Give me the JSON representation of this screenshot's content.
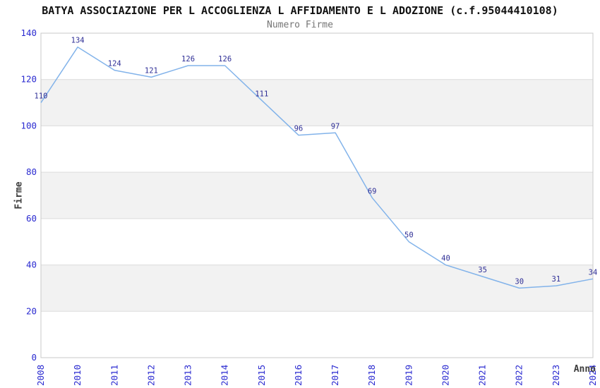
{
  "chart_data": {
    "type": "line",
    "title": "BATYA ASSOCIAZIONE PER L ACCOGLIENZA L AFFIDAMENTO E L ADOZIONE (c.f.95044410108)",
    "subtitle": "Numero Firme",
    "xlabel": "Anno",
    "ylabel": "Firme",
    "categories": [
      "2008",
      "2010",
      "2011",
      "2012",
      "2013",
      "2014",
      "2015",
      "2016",
      "2017",
      "2018",
      "2019",
      "2020",
      "2021",
      "2022",
      "2023",
      "2024"
    ],
    "series": [
      {
        "name": "Numero Firme",
        "values": [
          110,
          134,
          124,
          121,
          126,
          126,
          111,
          96,
          97,
          69,
          50,
          40,
          35,
          30,
          31,
          34
        ]
      }
    ],
    "point_labels": [
      "110",
      "134",
      "124",
      "121",
      "126",
      "126",
      "111",
      "96",
      "97",
      "69",
      "50",
      "40",
      "35",
      "30",
      "31",
      "34"
    ],
    "ylim": [
      0,
      140
    ],
    "ytick_step": 20,
    "ytick_labels": [
      "0",
      "20",
      "40",
      "60",
      "80",
      "100",
      "120",
      "140"
    ],
    "xtick_rotation_degrees": -90,
    "grid": "horizontal-gridlines-with-alternating-bands",
    "legend": "none",
    "colors": {
      "line": "#82b3ea",
      "data_label": "#2e2e96",
      "tick_label": "#2a2ad0",
      "title": "#111111",
      "subtitle": "#757575",
      "axis_title": "#3c3c3c",
      "band_fill": "#f2f2f2",
      "gridline": "#dcdcdc",
      "plot_border": "#c9c9c9",
      "background": "#ffffff"
    }
  }
}
